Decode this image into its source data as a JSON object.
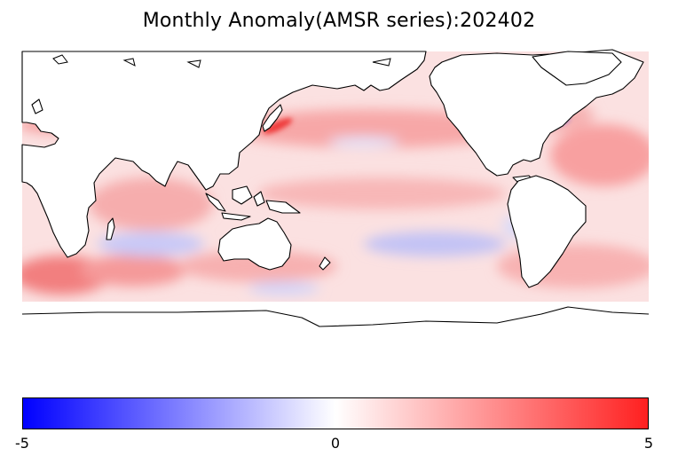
{
  "title": "Monthly Anomaly(AMSR series):202402",
  "colorbar": {
    "min_label": "-5",
    "mid_label": "0",
    "max_label": "5",
    "min": -5,
    "max": 5,
    "colormap": "blue-white-red",
    "low_color": "#0000ff",
    "mid_color": "#ffffff",
    "high_color": "#ff2020"
  },
  "map": {
    "projection": "equirectangular, centered on Pacific",
    "land_color": "#ffffff",
    "coastline_color": "#000000"
  }
}
